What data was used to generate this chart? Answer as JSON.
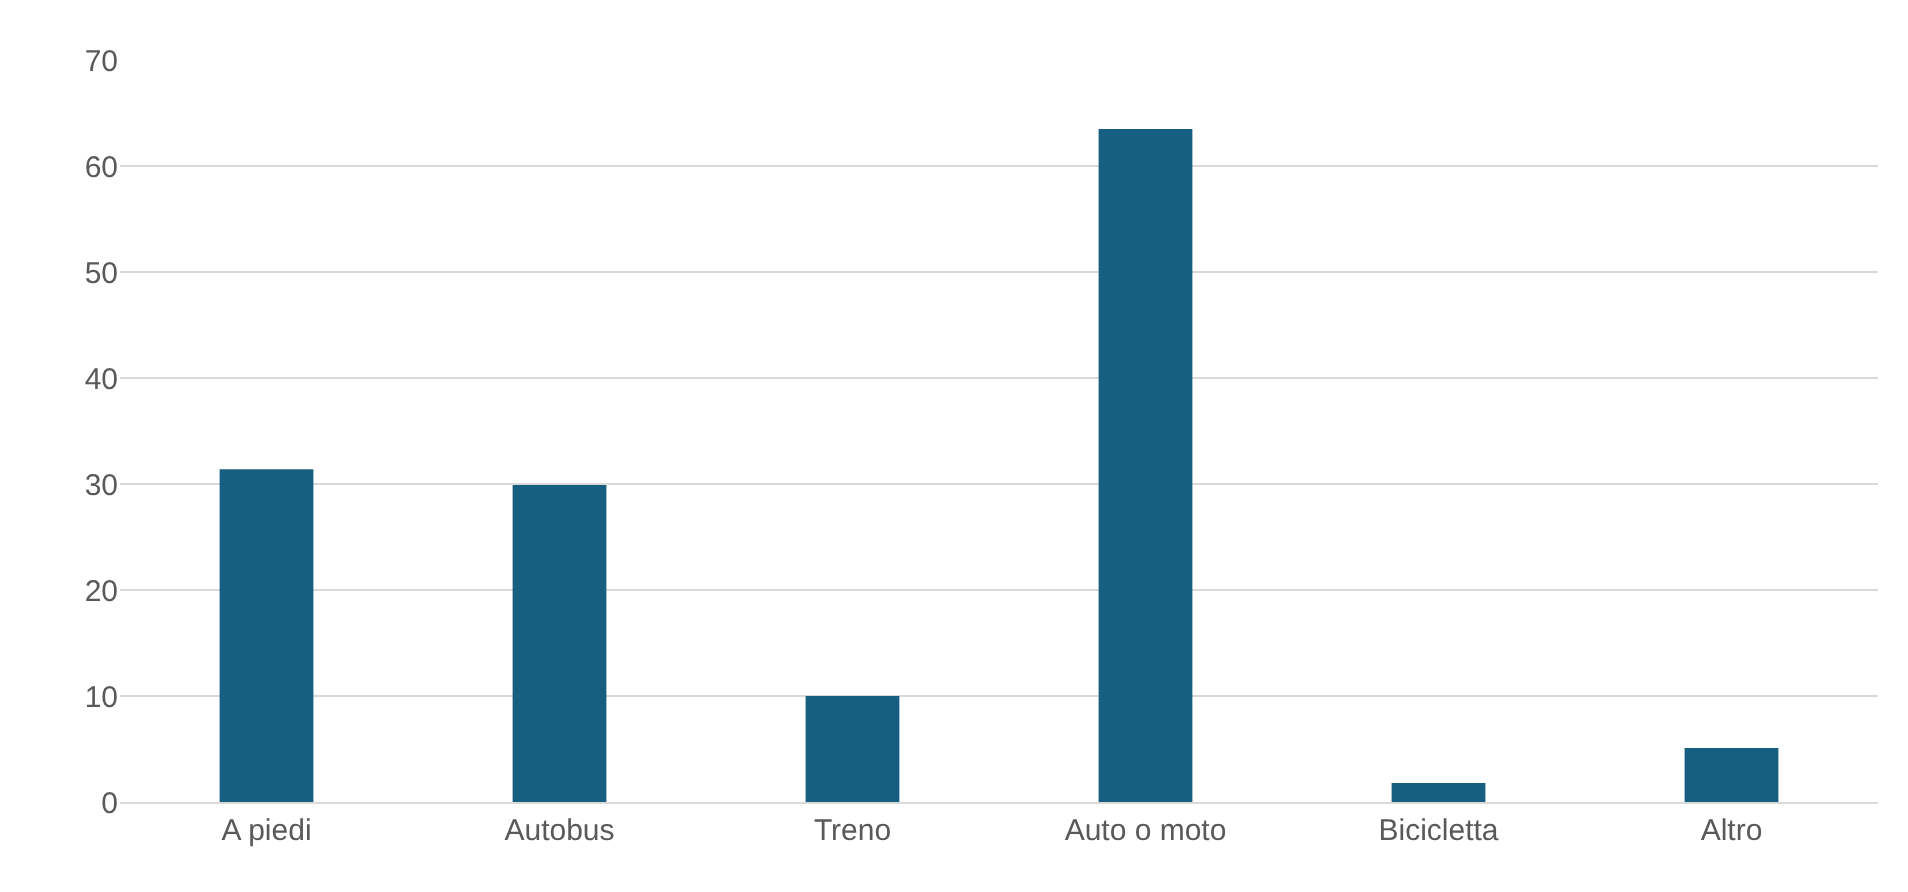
{
  "chart_data": {
    "type": "bar",
    "categories": [
      "A piedi",
      "Autobus",
      "Treno",
      "Auto o moto",
      "Bicicletta",
      "Altro"
    ],
    "values": [
      31.4,
      29.9,
      10.0,
      63.5,
      1.8,
      5.1
    ],
    "color": "#175f81",
    "ylim": [
      0,
      70
    ],
    "yticks": [
      0,
      10,
      20,
      30,
      40,
      50,
      60,
      70
    ],
    "grid": "y"
  }
}
